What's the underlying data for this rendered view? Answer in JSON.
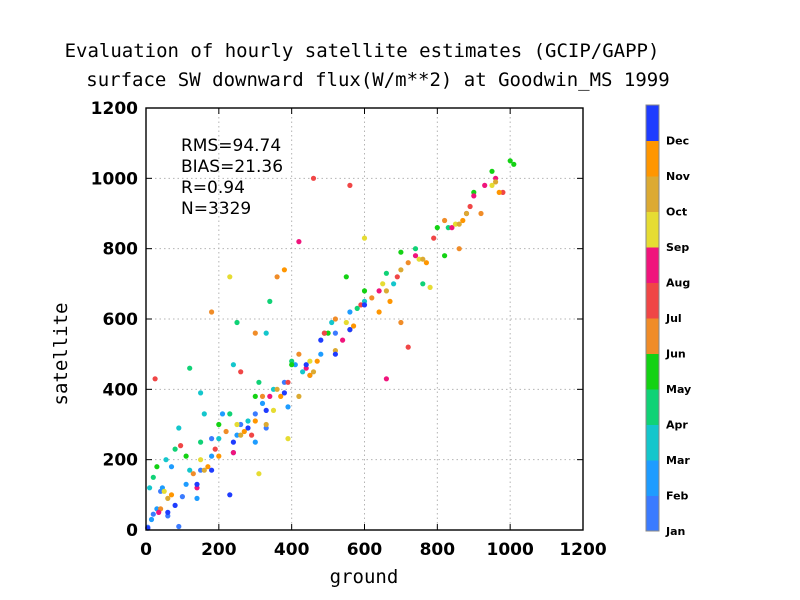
{
  "chart_data": {
    "type": "scatter",
    "title": [
      "Evaluation of hourly satellite estimates (GCIP/GAPP)",
      "surface SW downward flux(W/m**2) at Goodwin_MS 1999"
    ],
    "xlabel": "ground",
    "ylabel": "satellite",
    "xlim": [
      0,
      1200
    ],
    "ylim": [
      0,
      1200
    ],
    "xticks": [
      "0",
      "200",
      "400",
      "600",
      "800",
      "1000",
      "1200"
    ],
    "yticks": [
      "0",
      "200",
      "400",
      "600",
      "800",
      "1000",
      "1200"
    ],
    "grid": true,
    "stats": [
      "RMS=94.74",
      "BIAS=21.36",
      "R=0.94",
      "N=3329"
    ],
    "colorbar": {
      "placement": "right",
      "labels": [
        "Jan",
        "Feb",
        "Mar",
        "Apr",
        "May",
        "Jun",
        "Jul",
        "Aug",
        "Sep",
        "Oct",
        "Nov",
        "Dec"
      ],
      "colors": [
        "#3b7bff",
        "#1e9cff",
        "#14c6cc",
        "#10d276",
        "#14d214",
        "#f08c28",
        "#f04646",
        "#f0147c",
        "#e6dc32",
        "#dcaa32",
        "#ff9600",
        "#1e3cff"
      ]
    },
    "n_points": 3329,
    "series": [
      {
        "name": "Jan",
        "points": [
          [
            5,
            8
          ],
          [
            20,
            45
          ],
          [
            60,
            40
          ],
          [
            100,
            95
          ],
          [
            150,
            170
          ],
          [
            240,
            220
          ],
          [
            300,
            330
          ],
          [
            380,
            420
          ],
          [
            450,
            440
          ],
          [
            520,
            560
          ],
          [
            40,
            110
          ],
          [
            90,
            10
          ],
          [
            180,
            260
          ],
          [
            260,
            300
          ],
          [
            330,
            290
          ]
        ]
      },
      {
        "name": "Feb",
        "points": [
          [
            15,
            30
          ],
          [
            45,
            120
          ],
          [
            110,
            130
          ],
          [
            180,
            210
          ],
          [
            250,
            270
          ],
          [
            320,
            360
          ],
          [
            410,
            470
          ],
          [
            480,
            500
          ],
          [
            560,
            620
          ],
          [
            70,
            180
          ],
          [
            140,
            90
          ],
          [
            210,
            330
          ],
          [
            300,
            250
          ],
          [
            390,
            350
          ],
          [
            30,
            60
          ]
        ]
      },
      {
        "name": "Mar",
        "points": [
          [
            10,
            120
          ],
          [
            55,
            200
          ],
          [
            120,
            170
          ],
          [
            200,
            260
          ],
          [
            280,
            310
          ],
          [
            350,
            400
          ],
          [
            430,
            450
          ],
          [
            510,
            590
          ],
          [
            600,
            650
          ],
          [
            680,
            700
          ],
          [
            160,
            330
          ],
          [
            90,
            290
          ],
          [
            240,
            470
          ],
          [
            330,
            560
          ],
          [
            150,
            390
          ]
        ]
      },
      {
        "name": "Apr",
        "points": [
          [
            20,
            150
          ],
          [
            80,
            230
          ],
          [
            150,
            250
          ],
          [
            230,
            330
          ],
          [
            310,
            420
          ],
          [
            400,
            480
          ],
          [
            490,
            560
          ],
          [
            580,
            630
          ],
          [
            660,
            730
          ],
          [
            740,
            800
          ],
          [
            830,
            860
          ],
          [
            250,
            590
          ],
          [
            340,
            650
          ],
          [
            120,
            460
          ],
          [
            760,
            700
          ]
        ]
      },
      {
        "name": "May",
        "points": [
          [
            30,
            180
          ],
          [
            110,
            210
          ],
          [
            200,
            300
          ],
          [
            300,
            380
          ],
          [
            400,
            470
          ],
          [
            500,
            560
          ],
          [
            600,
            680
          ],
          [
            700,
            790
          ],
          [
            800,
            860
          ],
          [
            900,
            960
          ],
          [
            1000,
            1050
          ],
          [
            950,
            1020
          ],
          [
            550,
            720
          ],
          [
            820,
            780
          ],
          [
            1010,
            1040
          ]
        ]
      },
      {
        "name": "Jun",
        "points": [
          [
            40,
            60
          ],
          [
            130,
            160
          ],
          [
            220,
            280
          ],
          [
            320,
            380
          ],
          [
            420,
            500
          ],
          [
            520,
            600
          ],
          [
            620,
            660
          ],
          [
            720,
            760
          ],
          [
            820,
            880
          ],
          [
            920,
            900
          ],
          [
            360,
            720
          ],
          [
            300,
            560
          ],
          [
            700,
            590
          ],
          [
            860,
            800
          ],
          [
            180,
            620
          ]
        ]
      },
      {
        "name": "Jul",
        "points": [
          [
            25,
            430
          ],
          [
            95,
            240
          ],
          [
            190,
            230
          ],
          [
            290,
            270
          ],
          [
            390,
            420
          ],
          [
            490,
            560
          ],
          [
            590,
            640
          ],
          [
            690,
            720
          ],
          [
            790,
            830
          ],
          [
            890,
            920
          ],
          [
            980,
            960
          ],
          [
            460,
            1000
          ],
          [
            560,
            980
          ],
          [
            720,
            520
          ],
          [
            260,
            450
          ]
        ]
      },
      {
        "name": "Aug",
        "points": [
          [
            35,
            50
          ],
          [
            140,
            120
          ],
          [
            240,
            220
          ],
          [
            340,
            380
          ],
          [
            440,
            460
          ],
          [
            540,
            540
          ],
          [
            640,
            680
          ],
          [
            740,
            780
          ],
          [
            840,
            860
          ],
          [
            880,
            900
          ],
          [
            900,
            950
          ],
          [
            930,
            980
          ],
          [
            960,
            1000
          ],
          [
            660,
            430
          ],
          [
            420,
            820
          ]
        ]
      },
      {
        "name": "Sep",
        "points": [
          [
            50,
            110
          ],
          [
            150,
            200
          ],
          [
            250,
            300
          ],
          [
            350,
            340
          ],
          [
            450,
            480
          ],
          [
            550,
            590
          ],
          [
            650,
            700
          ],
          [
            750,
            770
          ],
          [
            850,
            870
          ],
          [
            950,
            980
          ],
          [
            390,
            260
          ],
          [
            230,
            720
          ],
          [
            600,
            830
          ],
          [
            780,
            690
          ],
          [
            310,
            160
          ]
        ]
      },
      {
        "name": "Oct",
        "points": [
          [
            60,
            90
          ],
          [
            160,
            170
          ],
          [
            260,
            270
          ],
          [
            360,
            400
          ],
          [
            460,
            450
          ],
          [
            560,
            570
          ],
          [
            660,
            680
          ],
          [
            760,
            770
          ],
          [
            860,
            870
          ],
          [
            960,
            990
          ],
          [
            420,
            380
          ],
          [
            330,
            300
          ],
          [
            700,
            740
          ],
          [
            520,
            510
          ],
          [
            880,
            900
          ]
        ]
      },
      {
        "name": "Nov",
        "points": [
          [
            70,
            100
          ],
          [
            170,
            180
          ],
          [
            270,
            280
          ],
          [
            370,
            380
          ],
          [
            470,
            480
          ],
          [
            570,
            580
          ],
          [
            670,
            650
          ],
          [
            770,
            760
          ],
          [
            870,
            880
          ],
          [
            970,
            960
          ],
          [
            200,
            210
          ],
          [
            300,
            310
          ],
          [
            450,
            440
          ],
          [
            640,
            620
          ],
          [
            380,
            740
          ]
        ]
      },
      {
        "name": "Dec",
        "points": [
          [
            5,
            5
          ],
          [
            80,
            70
          ],
          [
            180,
            170
          ],
          [
            280,
            290
          ],
          [
            380,
            390
          ],
          [
            440,
            470
          ],
          [
            480,
            540
          ],
          [
            520,
            500
          ],
          [
            560,
            570
          ],
          [
            600,
            640
          ],
          [
            330,
            340
          ],
          [
            240,
            250
          ],
          [
            140,
            130
          ],
          [
            60,
            50
          ],
          [
            230,
            100
          ]
        ]
      }
    ]
  }
}
